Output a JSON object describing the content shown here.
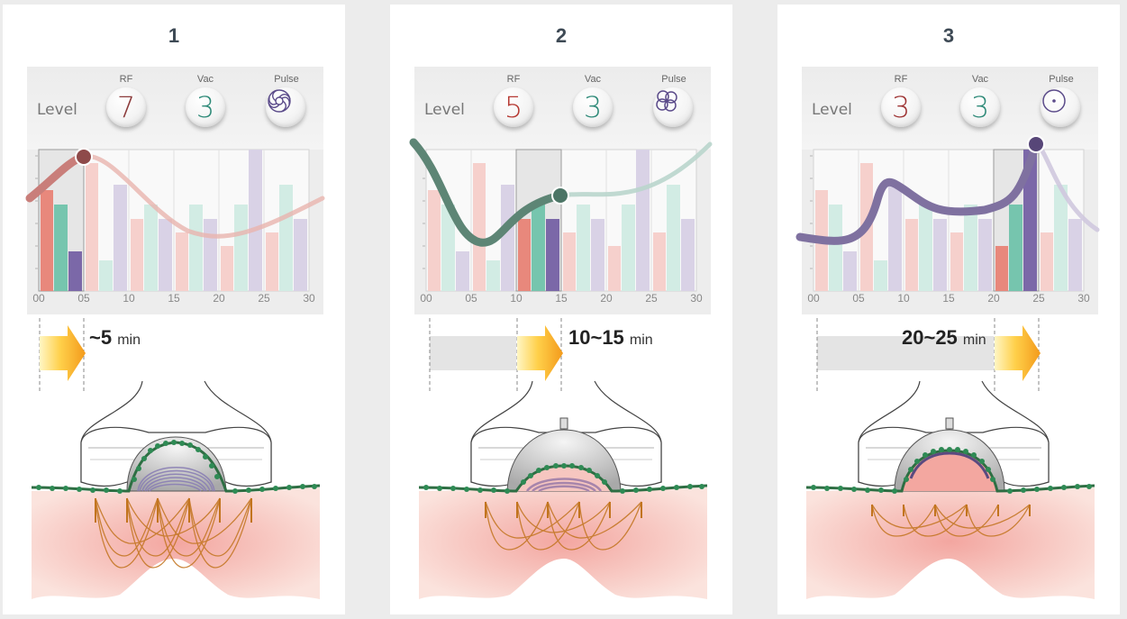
{
  "panels": [
    {
      "number": "1",
      "level_label": "Level",
      "dials": {
        "rf_label": "RF",
        "rf_value": "7",
        "vac_label": "Vac",
        "vac_value": "3",
        "pulse_label": "Pulse",
        "pulse_icon": "swirl-icon"
      },
      "time_value": "~5",
      "time_unit": "min",
      "stage_window": [
        "00",
        "05"
      ],
      "rf_color": "#8b3a3a"
    },
    {
      "number": "2",
      "level_label": "Level",
      "dials": {
        "rf_label": "RF",
        "rf_value": "5",
        "vac_label": "Vac",
        "vac_value": "3",
        "pulse_label": "Pulse",
        "pulse_icon": "clover-icon"
      },
      "time_value": "10~15",
      "time_unit": "min",
      "stage_window": [
        "10",
        "15"
      ],
      "rf_color": "#b63a33"
    },
    {
      "number": "3",
      "level_label": "Level",
      "dials": {
        "rf_label": "RF",
        "rf_value": "3",
        "vac_label": "Vac",
        "vac_value": "3",
        "pulse_label": "Pulse",
        "pulse_icon": "dot-circle-icon"
      },
      "time_value": "20~25",
      "time_unit": "min",
      "stage_window": [
        "20",
        "25"
      ],
      "rf_color": "#9e3434"
    }
  ],
  "x_ticks": [
    "00",
    "05",
    "10",
    "15",
    "20",
    "25",
    "30"
  ],
  "colors": {
    "rf": "#e8887c",
    "vac": "#76c5ae",
    "pulse": "#7b68a8",
    "rf_faded": "#f6d0cc",
    "vac_faded": "#d2ece4",
    "pulse_faded": "#d9d2e6",
    "vac_text": "#2e8a78",
    "curve_1": "#8e4a4a",
    "curve_2": "#4c7566",
    "curve_3": "#574678",
    "arrow": "#f5a623",
    "electrode": "#2e6e43",
    "rf_wave": "#c2741e",
    "skin": "#f7d2cc"
  }
}
